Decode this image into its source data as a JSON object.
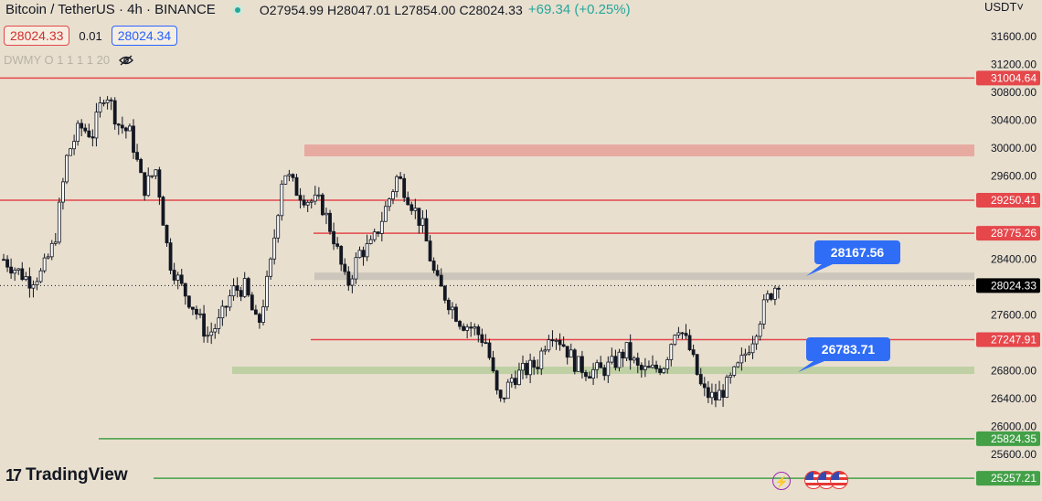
{
  "header": {
    "symbol": "Bitcoin / TetherUS · 4h · BINANCE",
    "ohlc": "O27954.99 H28047.01 L27854.00 C28024.33",
    "change": "+69.34 (+0.25%)"
  },
  "trade": {
    "sell_price": "28024.33",
    "spread": "0.01",
    "buy_price": "28024.34"
  },
  "indicators": {
    "label": "DWMY O 1 1 1 1 20"
  },
  "currency": "USDT˅",
  "logo_text": "TradingView",
  "colors": {
    "red": "#e5474b",
    "green": "#43a047",
    "blue": "#2f6df6",
    "candle": "#131722",
    "bg": "#e8dfcf"
  },
  "icons": [
    "eye-hidden-icon",
    "lightning-icon",
    "us-flag-icon"
  ],
  "chart_data": {
    "type": "candlestick",
    "y_axis": {
      "range": [
        25500,
        31750
      ],
      "ticks": [
        "31600.00",
        "31200.00",
        "30800.00",
        "30400.00",
        "30000.00",
        "29600.00",
        "29200.00",
        "28800.00",
        "28400.00",
        "28000.00",
        "27600.00",
        "27200.00",
        "26800.00",
        "26400.00",
        "26000.00",
        "25600.00"
      ]
    },
    "current_price": {
      "value": 28024.33,
      "label": "28024.33"
    },
    "horizontal_levels": [
      {
        "value": 31004.64,
        "label": "31004.64",
        "color": "red"
      },
      {
        "value": 29250.41,
        "label": "29250.41",
        "color": "red"
      },
      {
        "value": 28775.26,
        "label": "28775.26",
        "color": "red"
      },
      {
        "value": 27247.91,
        "label": "27247.91",
        "color": "red"
      },
      {
        "value": 25824.35,
        "label": "25824.35",
        "color": "green"
      },
      {
        "value": 25257.21,
        "label": "25257.21",
        "color": "green"
      }
    ],
    "zones": [
      {
        "from": 29880,
        "to": 30050,
        "color": "red"
      },
      {
        "from": 28130,
        "to": 28210,
        "color": "gray"
      },
      {
        "from": 26780,
        "to": 26860,
        "color": "green"
      }
    ],
    "callouts": [
      "28167.56",
      "26783.71"
    ],
    "close_path": [
      28400,
      28250,
      28100,
      28200,
      28650,
      29900,
      30300,
      30200,
      30850,
      30350,
      30200,
      29400,
      29700,
      28400,
      28000,
      27700,
      27300,
      27500,
      27950,
      28000,
      27400,
      28300,
      29700,
      29400,
      29250,
      29200,
      28700,
      28000,
      28500,
      28600,
      29100,
      29600,
      29250,
      28850,
      28100,
      27800,
      27500,
      27400,
      27200,
      26300,
      26700,
      26800,
      26900,
      27400,
      27200,
      26900,
      26800,
      26800,
      26900,
      27100,
      26800,
      26800,
      26900,
      27500,
      27100,
      26500,
      26400,
      26600,
      26900,
      27300,
      27800,
      28100
    ]
  }
}
